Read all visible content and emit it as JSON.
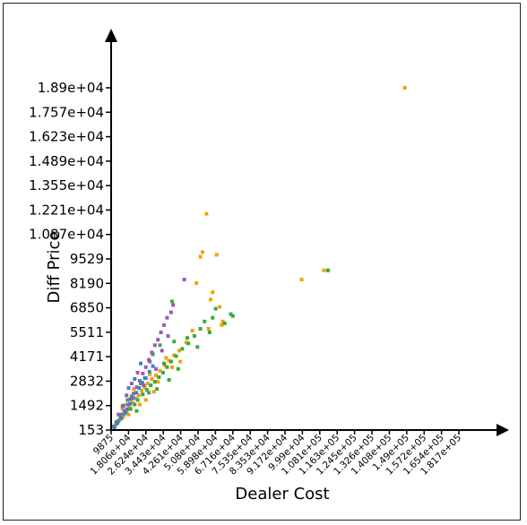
{
  "chart_data": {
    "type": "scatter",
    "title": "",
    "xlabel": "Dealer Cost",
    "ylabel": "Diff Price",
    "xlim": [
      9875,
      181700
    ],
    "ylim": [
      153,
      18900
    ],
    "x_ticks": [
      "9875",
      "1.806e+04",
      "2.624e+04",
      "3.443e+04",
      "4.261e+04",
      "5.08e+04",
      "5.898e+04",
      "6.716e+04",
      "7.535e+04",
      "8.353e+04",
      "9.172e+04",
      "9.99e+04",
      "1.081e+05",
      "1.163e+05",
      "1.245e+05",
      "1.326e+05",
      "1.408e+05",
      "1.49e+05",
      "1.572e+05",
      "1.654e+05",
      "1.817e+05"
    ],
    "y_ticks": [
      "153",
      "1492",
      "2832",
      "4171",
      "5511",
      "6850",
      "8190",
      "9529",
      "1.087e+04",
      "1.221e+04",
      "1.355e+04",
      "1.489e+04",
      "1.623e+04",
      "1.757e+04",
      "1.89e+04"
    ],
    "legend": [],
    "series": [
      {
        "name": "orange",
        "color": "#f0a30a",
        "points": [
          [
            12000,
            420
          ],
          [
            14000,
            700
          ],
          [
            16000,
            900
          ],
          [
            17500,
            1150
          ],
          [
            19000,
            1400
          ],
          [
            20500,
            1650
          ],
          [
            22000,
            1900
          ],
          [
            23500,
            2050
          ],
          [
            25000,
            2300
          ],
          [
            26500,
            2500
          ],
          [
            28000,
            2700
          ],
          [
            30000,
            2950
          ],
          [
            32000,
            3150
          ],
          [
            34000,
            3400
          ],
          [
            36500,
            3700
          ],
          [
            38500,
            3950
          ],
          [
            41000,
            4250
          ],
          [
            43500,
            4500
          ],
          [
            47000,
            4950
          ],
          [
            50000,
            5600
          ],
          [
            52000,
            8200
          ],
          [
            54000,
            9650
          ],
          [
            55000,
            9900
          ],
          [
            57000,
            12000
          ],
          [
            58000,
            5700
          ],
          [
            59000,
            7300
          ],
          [
            60000,
            7700
          ],
          [
            62000,
            9750
          ],
          [
            63500,
            6900
          ],
          [
            64500,
            5900
          ],
          [
            65000,
            6100
          ],
          [
            104000,
            8400
          ],
          [
            115000,
            8900
          ],
          [
            155000,
            18900
          ],
          [
            21000,
            2400
          ],
          [
            27000,
            1800
          ],
          [
            33000,
            2800
          ],
          [
            44000,
            3900
          ],
          [
            24000,
            1550
          ],
          [
            31000,
            2250
          ],
          [
            15500,
            1300
          ],
          [
            18500,
            1000
          ],
          [
            40000,
            3600
          ],
          [
            29000,
            3200
          ],
          [
            37000,
            4100
          ]
        ]
      },
      {
        "name": "green",
        "color": "#3aaa3a",
        "points": [
          [
            11000,
            350
          ],
          [
            13500,
            650
          ],
          [
            15000,
            800
          ],
          [
            17000,
            1100
          ],
          [
            19500,
            1300
          ],
          [
            21500,
            1550
          ],
          [
            23000,
            1800
          ],
          [
            25500,
            2100
          ],
          [
            27500,
            2350
          ],
          [
            29500,
            2600
          ],
          [
            31500,
            2800
          ],
          [
            33500,
            3050
          ],
          [
            35500,
            3300
          ],
          [
            37500,
            3600
          ],
          [
            39500,
            3900
          ],
          [
            42000,
            4200
          ],
          [
            45000,
            4600
          ],
          [
            48000,
            4900
          ],
          [
            51000,
            5300
          ],
          [
            54000,
            5700
          ],
          [
            56000,
            6100
          ],
          [
            58500,
            5500
          ],
          [
            60000,
            6300
          ],
          [
            61500,
            6800
          ],
          [
            66000,
            6000
          ],
          [
            69000,
            6500
          ],
          [
            70000,
            6400
          ],
          [
            40000,
            7200
          ],
          [
            34000,
            4800
          ],
          [
            30500,
            4300
          ],
          [
            28500,
            2200
          ],
          [
            24500,
            2700
          ],
          [
            22500,
            1200
          ],
          [
            18000,
            1800
          ],
          [
            16000,
            1500
          ],
          [
            36000,
            3800
          ],
          [
            41000,
            5000
          ],
          [
            26500,
            3000
          ],
          [
            32500,
            2400
          ],
          [
            20000,
            2000
          ],
          [
            47500,
            5200
          ],
          [
            43000,
            3500
          ],
          [
            38500,
            2900
          ],
          [
            14500,
            1000
          ],
          [
            12500,
            600
          ],
          [
            52500,
            4700
          ],
          [
            117000,
            8900
          ]
        ]
      },
      {
        "name": "purple",
        "color": "#9b59b6",
        "points": [
          [
            12500,
            500
          ],
          [
            14500,
            850
          ],
          [
            16500,
            1200
          ],
          [
            18000,
            1550
          ],
          [
            19500,
            1850
          ],
          [
            21000,
            2150
          ],
          [
            22500,
            2500
          ],
          [
            24000,
            2850
          ],
          [
            25500,
            3250
          ],
          [
            27000,
            3600
          ],
          [
            28500,
            4000
          ],
          [
            30000,
            4400
          ],
          [
            31500,
            4800
          ],
          [
            33000,
            5100
          ],
          [
            34500,
            5500
          ],
          [
            36000,
            5900
          ],
          [
            37500,
            6300
          ],
          [
            39500,
            6600
          ],
          [
            46000,
            8400
          ],
          [
            20000,
            2700
          ],
          [
            23000,
            3300
          ],
          [
            26000,
            2600
          ],
          [
            29000,
            3900
          ],
          [
            17500,
            2050
          ],
          [
            15500,
            1450
          ],
          [
            13500,
            1000
          ],
          [
            32000,
            3500
          ],
          [
            35000,
            4500
          ],
          [
            38000,
            5300
          ],
          [
            40500,
            7000
          ]
        ]
      },
      {
        "name": "blue",
        "color": "#3d7fd6",
        "points": [
          [
            11500,
            300
          ],
          [
            13000,
            550
          ],
          [
            14800,
            800
          ],
          [
            16300,
            1050
          ],
          [
            17800,
            1300
          ],
          [
            19300,
            1600
          ],
          [
            20800,
            1900
          ],
          [
            22300,
            2200
          ],
          [
            23800,
            2450
          ],
          [
            25300,
            2750
          ],
          [
            27000,
            3000
          ],
          [
            28800,
            3350
          ],
          [
            30500,
            3650
          ],
          [
            21500,
            2950
          ],
          [
            24500,
            3800
          ],
          [
            18500,
            2450
          ]
        ]
      }
    ]
  }
}
